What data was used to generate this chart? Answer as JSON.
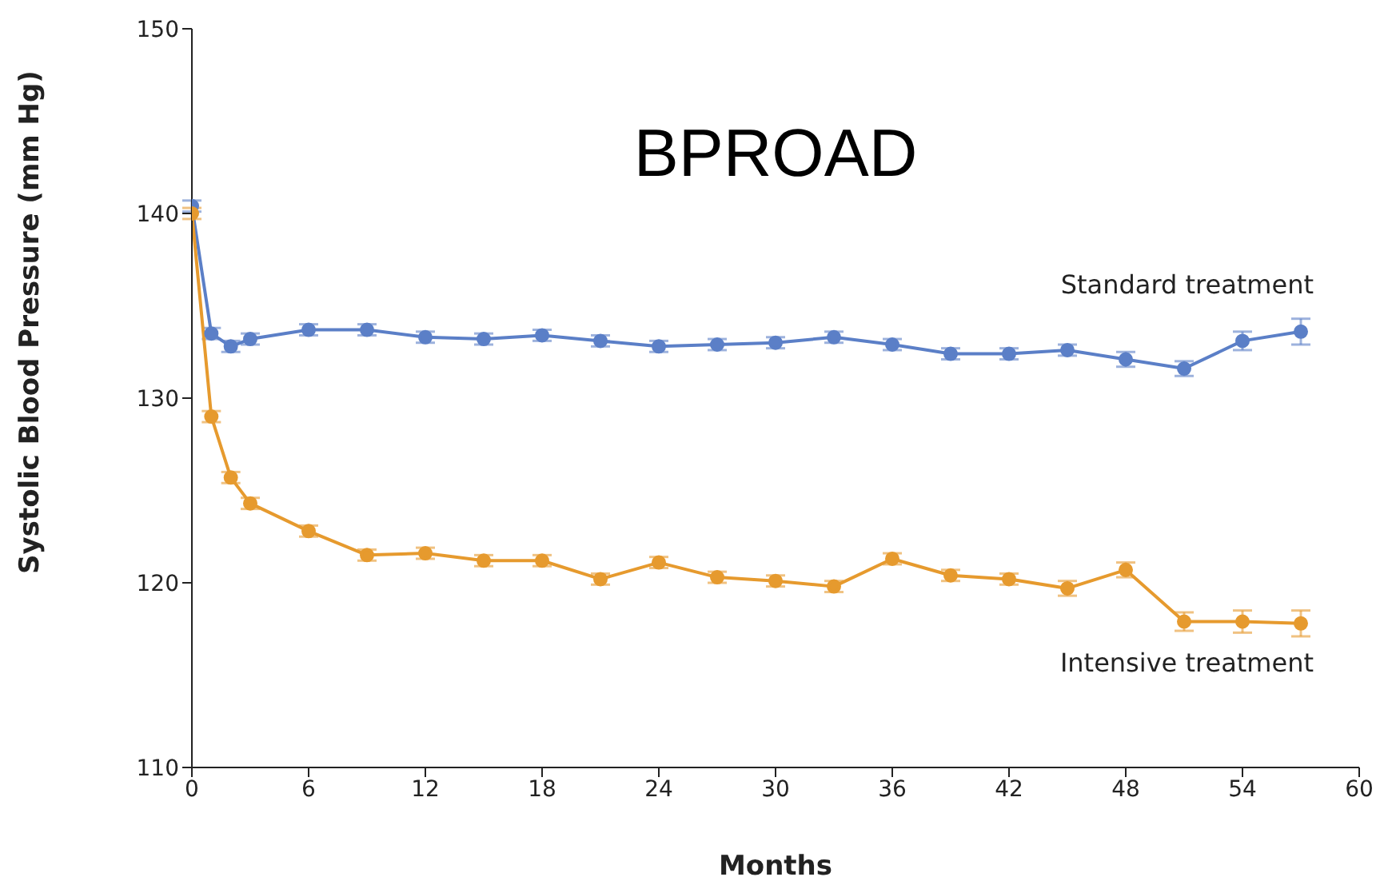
{
  "chart_data": {
    "type": "line",
    "title": "BPROAD",
    "xlabel": "Months",
    "ylabel": "Systolic Blood Pressure (mm Hg)",
    "x": [
      0,
      1,
      2,
      3,
      6,
      9,
      12,
      15,
      18,
      21,
      24,
      27,
      30,
      33,
      36,
      39,
      42,
      45,
      48,
      51,
      54,
      57
    ],
    "series": [
      {
        "name": "Standard treatment",
        "color": "#5b7fc7",
        "values": [
          140.4,
          133.5,
          132.8,
          133.2,
          133.7,
          133.7,
          133.3,
          133.2,
          133.4,
          133.1,
          132.8,
          132.9,
          133.0,
          133.3,
          132.9,
          132.4,
          132.4,
          132.6,
          132.1,
          131.6,
          133.1,
          133.6
        ],
        "errors": [
          0.3,
          0.3,
          0.3,
          0.3,
          0.3,
          0.3,
          0.3,
          0.3,
          0.3,
          0.3,
          0.3,
          0.3,
          0.3,
          0.3,
          0.3,
          0.3,
          0.3,
          0.3,
          0.4,
          0.4,
          0.5,
          0.7
        ]
      },
      {
        "name": "Intensive treatment",
        "color": "#e69a2e",
        "values": [
          140.0,
          129.0,
          125.7,
          124.3,
          122.8,
          121.5,
          121.6,
          121.2,
          121.2,
          120.2,
          121.1,
          120.3,
          120.1,
          119.8,
          121.3,
          120.4,
          120.2,
          119.7,
          120.7,
          117.9,
          117.9,
          117.8
        ],
        "errors": [
          0.3,
          0.3,
          0.3,
          0.3,
          0.3,
          0.3,
          0.3,
          0.3,
          0.3,
          0.3,
          0.3,
          0.3,
          0.3,
          0.3,
          0.3,
          0.3,
          0.3,
          0.4,
          0.4,
          0.5,
          0.6,
          0.7
        ]
      }
    ],
    "xlim": [
      0,
      60
    ],
    "xticks": [
      0,
      6,
      12,
      18,
      24,
      30,
      36,
      42,
      48,
      54,
      60
    ],
    "ylim": [
      110,
      150
    ],
    "yticks": [
      110,
      120,
      130,
      140,
      150
    ],
    "grid": false,
    "legend": false,
    "marker": "circle",
    "line_style": "solid"
  }
}
